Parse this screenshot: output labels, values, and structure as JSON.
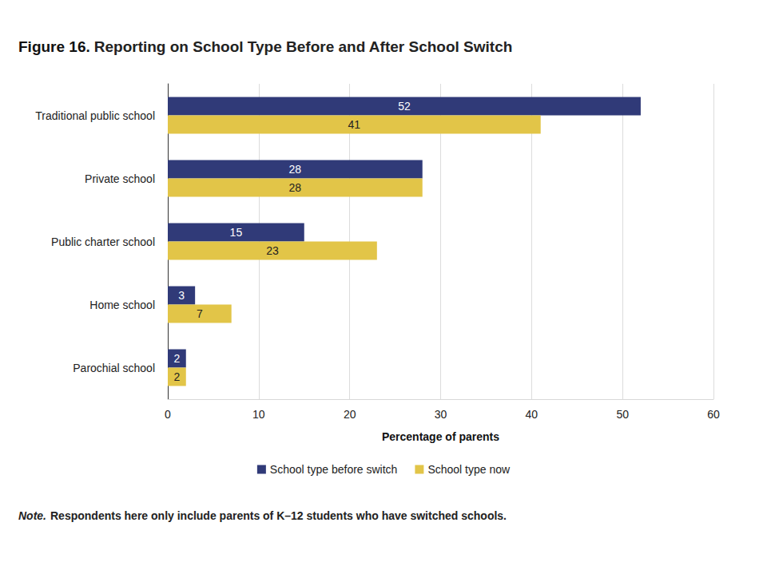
{
  "chart_data": {
    "type": "bar",
    "orientation": "horizontal",
    "title": "Figure 16. Reporting on School Type Before and After School Switch",
    "x_label": "Percentage of parents",
    "note": "Note. Respondents here only include parents of K–12 students who have switched schools.",
    "categories": [
      "Traditional public school",
      "Private school",
      "Public charter school",
      "Home school",
      "Parochial school"
    ],
    "series": [
      {
        "name": "School type before switch",
        "color": "#303a78",
        "values": [
          52,
          28,
          15,
          3,
          2
        ]
      },
      {
        "name": "School type now",
        "color": "#e2c548",
        "values": [
          41,
          28,
          23,
          7,
          2
        ]
      }
    ],
    "xlim": [
      0,
      60
    ],
    "xticks": [
      0,
      10,
      20,
      30,
      40,
      50,
      60
    ],
    "grid": true,
    "data_labels": true,
    "legend": "bottom"
  }
}
